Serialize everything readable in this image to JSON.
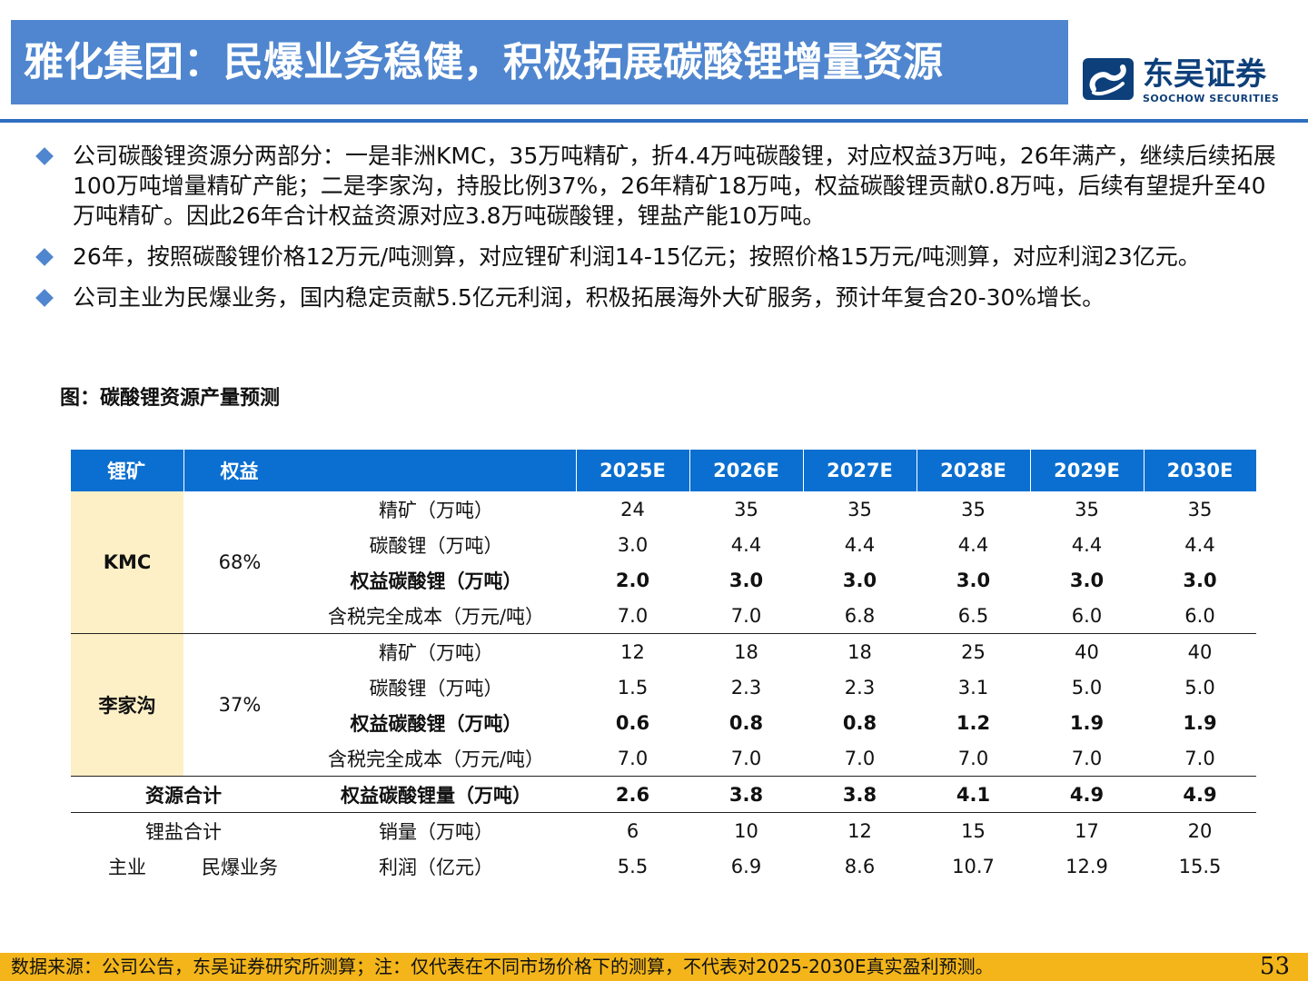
{
  "header": {
    "title": "雅化集团：民爆业务稳健，积极拓展碳酸锂增量资源",
    "logo_cn": "东吴证券",
    "logo_en": "SOOCHOW SECURITIES",
    "accent": "#4f86cf"
  },
  "bullets": [
    "公司碳酸锂资源分两部分：一是非洲KMC，35万吨精矿，折4.4万吨碳酸锂，对应权益3万吨，26年满产，继续后续拓展100万吨增量精矿产能；二是李家沟，持股比例37%，26年精矿18万吨，权益碳酸锂贡献0.8万吨，后续有望提升至40万吨精矿。因此26年合计权益资源对应3.8万吨碳酸锂，锂盐产能10万吨。",
    "26年，按照碳酸锂价格12万元/吨测算，对应锂矿利润14-15亿元；按照价格15万元/吨测算，对应利润23亿元。",
    "公司主业为民爆业务，国内稳定贡献5.5亿元利润，积极拓展海外大矿服务，预计年复合20-30%增长。"
  ],
  "figure_title": "图：碳酸锂资源产量预测",
  "table": {
    "headers": [
      "锂矿",
      "权益",
      "2025E",
      "2026E",
      "2027E",
      "2028E",
      "2029E",
      "2030E"
    ],
    "groups": [
      {
        "mine": "KMC",
        "share": "68%",
        "rows": [
          {
            "label": "精矿（万吨）",
            "values": [
              "24",
              "35",
              "35",
              "35",
              "35",
              "35"
            ],
            "bold": false
          },
          {
            "label": "碳酸锂（万吨）",
            "values": [
              "3.0",
              "4.4",
              "4.4",
              "4.4",
              "4.4",
              "4.4"
            ],
            "bold": false
          },
          {
            "label": "权益碳酸锂（万吨）",
            "values": [
              "2.0",
              "3.0",
              "3.0",
              "3.0",
              "3.0",
              "3.0"
            ],
            "bold": true
          },
          {
            "label": "含税完全成本（万元/吨）",
            "values": [
              "7.0",
              "7.0",
              "6.8",
              "6.5",
              "6.0",
              "6.0"
            ],
            "bold": false
          }
        ]
      },
      {
        "mine": "李家沟",
        "share": "37%",
        "rows": [
          {
            "label": "精矿（万吨）",
            "values": [
              "12",
              "18",
              "18",
              "25",
              "40",
              "40"
            ],
            "bold": false
          },
          {
            "label": "碳酸锂（万吨）",
            "values": [
              "1.5",
              "2.3",
              "2.3",
              "3.1",
              "5.0",
              "5.0"
            ],
            "bold": false
          },
          {
            "label": "权益碳酸锂（万吨）",
            "values": [
              "0.6",
              "0.8",
              "0.8",
              "1.2",
              "1.9",
              "1.9"
            ],
            "bold": true
          },
          {
            "label": "含税完全成本（万元/吨）",
            "values": [
              "7.0",
              "7.0",
              "7.0",
              "7.0",
              "7.0",
              "7.0"
            ],
            "bold": false
          }
        ]
      }
    ],
    "total": {
      "label": "资源合计",
      "metric": "权益碳酸锂量（万吨）",
      "values": [
        "2.6",
        "3.8",
        "3.8",
        "4.1",
        "4.9",
        "4.9"
      ]
    },
    "salt": {
      "label": "锂盐合计",
      "metric": "销量（万吨）",
      "values": [
        "6",
        "10",
        "12",
        "15",
        "17",
        "20"
      ]
    },
    "main": {
      "label": "主业",
      "sub": "民爆业务",
      "metric": "利润（亿元）",
      "values": [
        "5.5",
        "6.9",
        "8.6",
        "10.7",
        "12.9",
        "15.5"
      ]
    }
  },
  "footer": {
    "source": "数据来源：公司公告，东吴证券研究所测算；注：仅代表在不同市场价格下的测算，不代表对2025-2030E真实盈利预测。",
    "page": "53"
  }
}
